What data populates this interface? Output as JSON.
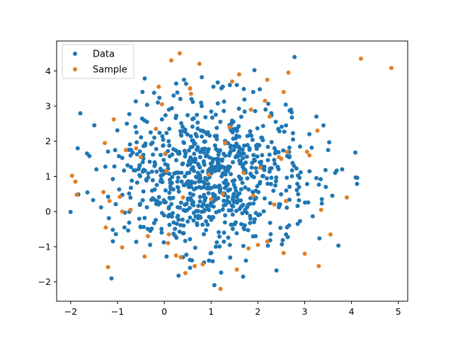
{
  "chart_data": {
    "type": "scatter",
    "xlim": [
      -2.3,
      5.2
    ],
    "ylim": [
      -2.55,
      4.85
    ],
    "xticks": [
      -2,
      -1,
      0,
      1,
      2,
      3,
      4,
      5
    ],
    "yticks": [
      -2,
      -1,
      0,
      1,
      2,
      3,
      4
    ],
    "xtick_labels": [
      "−2",
      "−1",
      "0",
      "1",
      "2",
      "3",
      "4",
      "5"
    ],
    "ytick_labels": [
      "−2",
      "−1",
      "0",
      "1",
      "2",
      "3",
      "4"
    ],
    "grid": false,
    "legend_position": "upper left",
    "series": [
      {
        "name": "Data",
        "color": "#1f77b4",
        "generator": {
          "count": 800,
          "mean": [
            1.0,
            1.0
          ],
          "std": [
            1.0,
            1.0
          ],
          "seed": 7
        },
        "points": [
          [
            -1.85,
            1.8
          ],
          [
            -1.65,
            1.65
          ],
          [
            -1.6,
            1.58
          ],
          [
            -1.35,
            0.12
          ],
          [
            -1.2,
            0.42
          ],
          [
            -1.1,
            -0.52
          ],
          [
            -1.05,
            1.75
          ],
          [
            -0.8,
            2.5
          ],
          [
            -0.05,
            2.62
          ],
          [
            0.1,
            2.9
          ],
          [
            0.2,
            3.3
          ],
          [
            0.42,
            3.75
          ],
          [
            0.55,
            3.5
          ],
          [
            0.58,
            3.2
          ],
          [
            0.8,
            3.0
          ],
          [
            1.05,
            3.55
          ],
          [
            1.25,
            3.55
          ],
          [
            1.4,
            3.6
          ],
          [
            1.55,
            3.6
          ],
          [
            1.9,
            3.4
          ],
          [
            2.6,
            2.45
          ],
          [
            2.75,
            2.05
          ],
          [
            2.9,
            1.85
          ],
          [
            3.1,
            2.2
          ],
          [
            3.25,
            2.7
          ],
          [
            3.4,
            2.45
          ],
          [
            3.5,
            1.75
          ],
          [
            3.25,
            0.95
          ],
          [
            3.45,
            0.7
          ],
          [
            3.65,
            1.1
          ],
          [
            3.72,
            -0.97
          ],
          [
            3.8,
            1.2
          ],
          [
            2.85,
            -0.35
          ],
          [
            2.6,
            -0.65
          ],
          [
            1.95,
            -0.7
          ],
          [
            1.4,
            -0.95
          ],
          [
            1.1,
            -1.0
          ],
          [
            0.85,
            -1.45
          ],
          [
            0.55,
            -1.6
          ],
          [
            0.4,
            -1.3
          ],
          [
            0.05,
            -1.28
          ],
          [
            -0.3,
            -0.55
          ],
          [
            -0.85,
            -0.45
          ],
          [
            -1.45,
            1.2
          ]
        ]
      },
      {
        "name": "Sample",
        "color": "#e07f2a",
        "points": [
          [
            -1.97,
            1.02
          ],
          [
            -1.9,
            0.85
          ],
          [
            -1.87,
            0.48
          ],
          [
            -1.3,
            0.55
          ],
          [
            -1.27,
            1.95
          ],
          [
            -1.25,
            -0.45
          ],
          [
            -1.2,
            -1.58
          ],
          [
            -1.17,
            0.3
          ],
          [
            -1.08,
            2.62
          ],
          [
            -0.95,
            0.42
          ],
          [
            -0.9,
            -1.02
          ],
          [
            -0.9,
            0.0
          ],
          [
            -0.82,
            1.75
          ],
          [
            -0.72,
            0.05
          ],
          [
            -0.6,
            1.8
          ],
          [
            -0.5,
            1.55
          ],
          [
            -0.42,
            -1.28
          ],
          [
            -0.35,
            -0.7
          ],
          [
            -0.18,
            2.35
          ],
          [
            -0.12,
            3.55
          ],
          [
            -0.05,
            3.05
          ],
          [
            0.02,
            1.65
          ],
          [
            0.05,
            1.15
          ],
          [
            0.08,
            -0.9
          ],
          [
            0.1,
            -0.65
          ],
          [
            0.15,
            4.3
          ],
          [
            0.25,
            -1.25
          ],
          [
            0.33,
            4.5
          ],
          [
            0.35,
            -1.3
          ],
          [
            0.4,
            0.4
          ],
          [
            0.45,
            -1.75
          ],
          [
            0.55,
            3.5
          ],
          [
            0.57,
            3.35
          ],
          [
            0.65,
            -1.55
          ],
          [
            0.75,
            4.2
          ],
          [
            0.82,
            -1.5
          ],
          [
            0.95,
            1.05
          ],
          [
            1.0,
            0.35
          ],
          [
            1.2,
            -2.2
          ],
          [
            1.25,
            0.5
          ],
          [
            1.3,
            1.95
          ],
          [
            1.4,
            2.4
          ],
          [
            1.45,
            3.7
          ],
          [
            1.55,
            -1.65
          ],
          [
            1.6,
            3.9
          ],
          [
            1.7,
            1.1
          ],
          [
            1.8,
            -1.05
          ],
          [
            1.85,
            2.9
          ],
          [
            1.9,
            0.45
          ],
          [
            2.0,
            -0.95
          ],
          [
            2.05,
            1.25
          ],
          [
            2.15,
            3.15
          ],
          [
            2.2,
            -0.85
          ],
          [
            2.2,
            3.75
          ],
          [
            2.25,
            2.7
          ],
          [
            2.35,
            0.2
          ],
          [
            2.45,
            1.55
          ],
          [
            2.5,
            1.5
          ],
          [
            2.55,
            -1.18
          ],
          [
            2.55,
            3.4
          ],
          [
            2.6,
            0.3
          ],
          [
            2.62,
            1.7
          ],
          [
            2.65,
            3.95
          ],
          [
            3.0,
            -1.2
          ],
          [
            3.05,
            1.7
          ],
          [
            3.1,
            1.6
          ],
          [
            3.27,
            2.3
          ],
          [
            3.3,
            -1.55
          ],
          [
            3.35,
            0.05
          ],
          [
            3.55,
            -0.65
          ],
          [
            3.9,
            0.4
          ],
          [
            4.2,
            4.35
          ],
          [
            4.85,
            4.08
          ]
        ]
      }
    ]
  },
  "legend": {
    "items": [
      {
        "label": "Data",
        "color": "#1f77b4"
      },
      {
        "label": "Sample",
        "color": "#e07f2a"
      }
    ]
  }
}
